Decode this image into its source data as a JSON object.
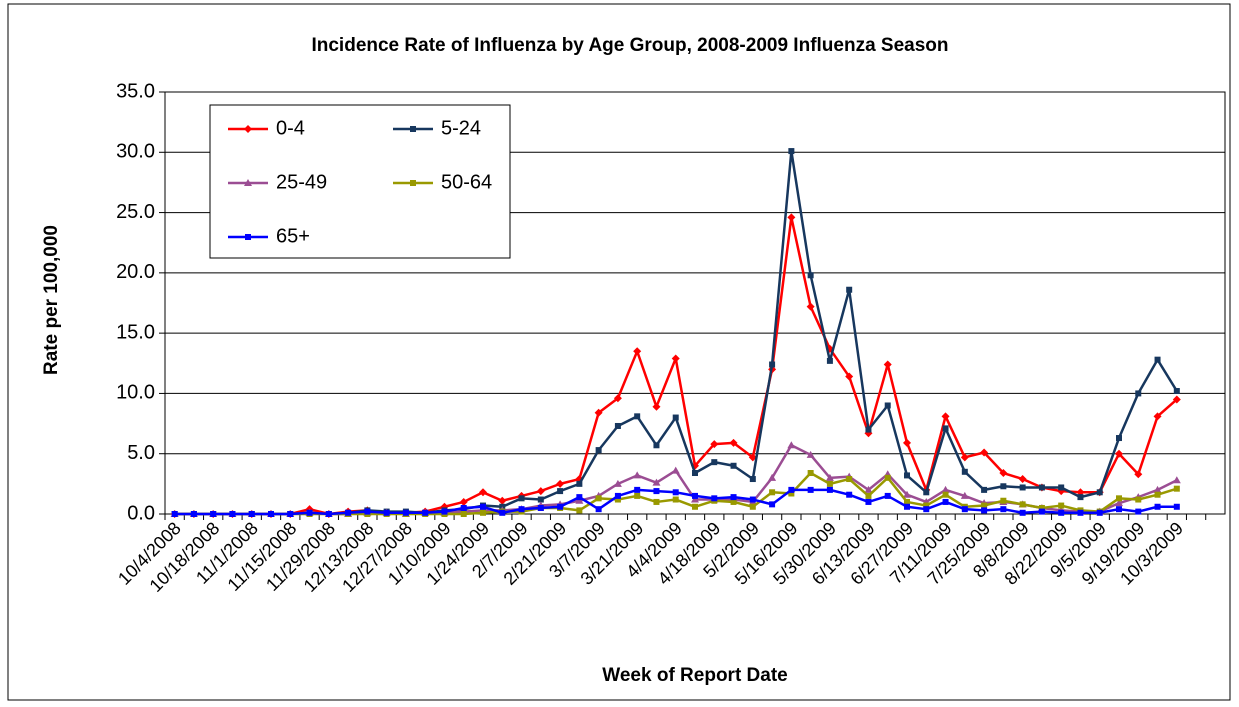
{
  "chart_data": {
    "type": "line",
    "title": "Incidence Rate of Influenza by Age Group, 2008-2009 Influenza Season",
    "x_label": "Week of Report Date",
    "y_label": "Rate per 100,000",
    "categories": [
      "10/4/2008",
      null,
      "10/18/2008",
      null,
      "11/1/2008",
      null,
      "11/15/2008",
      null,
      "11/29/2008",
      null,
      "12/13/2008",
      null,
      "12/27/2008",
      null,
      "1/10/2009",
      null,
      "1/24/2009",
      null,
      "2/7/2009",
      null,
      "2/21/2009",
      null,
      "3/7/2009",
      null,
      "3/21/2009",
      null,
      "4/4/2009",
      null,
      "4/18/2009",
      null,
      "5/2/2009",
      null,
      "5/16/2009",
      null,
      "5/30/2009",
      null,
      "6/13/2009",
      null,
      "6/27/2009",
      null,
      "7/11/2009",
      null,
      "7/25/2009",
      null,
      "8/8/2009",
      null,
      "8/22/2009",
      null,
      "9/5/2009",
      null,
      "9/19/2009",
      null,
      "10/3/2009",
      null,
      null
    ],
    "series": [
      {
        "name": "0-4",
        "color": "#ff0000",
        "marker": "diamond",
        "values": [
          0,
          0,
          0,
          0,
          0,
          0,
          0,
          0.4,
          0,
          0.2,
          0.3,
          0.1,
          0.1,
          0.2,
          0.6,
          1.0,
          1.8,
          1.1,
          1.5,
          1.9,
          2.5,
          2.9,
          8.4,
          9.6,
          13.5,
          8.9,
          12.9,
          4.0,
          5.8,
          5.9,
          4.7,
          12.0,
          24.6,
          17.2,
          13.7,
          11.4,
          6.7,
          12.4,
          5.9,
          2.0,
          8.1,
          4.7,
          5.1,
          3.4,
          2.9,
          2.2,
          1.9,
          1.8,
          1.8,
          5.0,
          3.3,
          8.1,
          9.5,
          null,
          null
        ]
      },
      {
        "name": "5-24",
        "color": "#17375e",
        "marker": "square",
        "values": [
          0,
          0,
          0,
          0,
          0,
          0,
          0,
          0.1,
          0,
          0.1,
          0.3,
          0.2,
          0.2,
          0.1,
          0.3,
          0.4,
          0.7,
          0.6,
          1.3,
          1.2,
          1.9,
          2.5,
          5.3,
          7.3,
          8.1,
          5.7,
          8.0,
          3.4,
          4.3,
          4.0,
          2.9,
          12.4,
          30.1,
          19.8,
          12.7,
          18.6,
          7.0,
          9.0,
          3.2,
          1.8,
          7.1,
          3.5,
          2.0,
          2.3,
          2.2,
          2.2,
          2.2,
          1.4,
          1.8,
          6.3,
          10.0,
          12.8,
          10.2,
          null,
          null
        ]
      },
      {
        "name": "25-49",
        "color": "#9b4d93",
        "marker": "triangle",
        "values": [
          0,
          0,
          0,
          0,
          0,
          0,
          0,
          0.1,
          0,
          0,
          0.1,
          0.1,
          0,
          0.1,
          0.1,
          0.2,
          0.3,
          0.3,
          0.4,
          0.7,
          0.8,
          1.1,
          1.5,
          2.5,
          3.2,
          2.6,
          3.6,
          1.2,
          1.2,
          1.2,
          1.0,
          3.0,
          5.7,
          4.9,
          3.0,
          3.1,
          2.0,
          3.3,
          1.6,
          1.0,
          2.0,
          1.5,
          0.9,
          1.0,
          0.8,
          0.5,
          0.3,
          0.2,
          0.2,
          0.9,
          1.4,
          2.0,
          2.8,
          null,
          null
        ]
      },
      {
        "name": "50-64",
        "color": "#999900",
        "marker": "square",
        "values": [
          0,
          0,
          0,
          0,
          0,
          0,
          0,
          0,
          0,
          0,
          0,
          0,
          0,
          0,
          0,
          0,
          0.1,
          0.2,
          0.2,
          0.5,
          0.5,
          0.3,
          1.3,
          1.2,
          1.5,
          1.0,
          1.2,
          0.6,
          1.1,
          1.0,
          0.6,
          1.8,
          1.7,
          3.4,
          2.5,
          2.9,
          1.5,
          3.0,
          1.0,
          0.7,
          1.6,
          0.6,
          0.7,
          1.1,
          0.8,
          0.5,
          0.7,
          0.3,
          0.2,
          1.3,
          1.2,
          1.6,
          2.1,
          null,
          null
        ]
      },
      {
        "name": "65+",
        "color": "#0000ff",
        "marker": "square",
        "values": [
          0,
          0,
          0,
          0,
          0,
          0,
          0,
          0.1,
          0,
          0.1,
          0.2,
          0.1,
          0.1,
          0.1,
          0.2,
          0.5,
          0.6,
          0.1,
          0.4,
          0.5,
          0.6,
          1.4,
          0.4,
          1.5,
          2.0,
          1.9,
          1.8,
          1.5,
          1.3,
          1.4,
          1.2,
          0.8,
          2.0,
          2.0,
          2.0,
          1.6,
          1.0,
          1.5,
          0.6,
          0.4,
          1.0,
          0.4,
          0.3,
          0.4,
          0.1,
          0.2,
          0.1,
          0.1,
          0.1,
          0.4,
          0.2,
          0.6,
          0.6,
          null,
          null
        ]
      }
    ],
    "ylim": [
      0,
      35
    ],
    "yticks": [
      {
        "value": 0,
        "label": "0.0"
      },
      {
        "value": 5,
        "label": "5.0"
      },
      {
        "value": 10,
        "label": "10.0"
      },
      {
        "value": 15,
        "label": "15.0"
      },
      {
        "value": 20,
        "label": "20.0"
      },
      {
        "value": 25,
        "label": "25.0"
      },
      {
        "value": 30,
        "label": "30.0"
      },
      {
        "value": 35,
        "label": "35.0"
      }
    ],
    "grid": true,
    "legend": "upper left"
  }
}
